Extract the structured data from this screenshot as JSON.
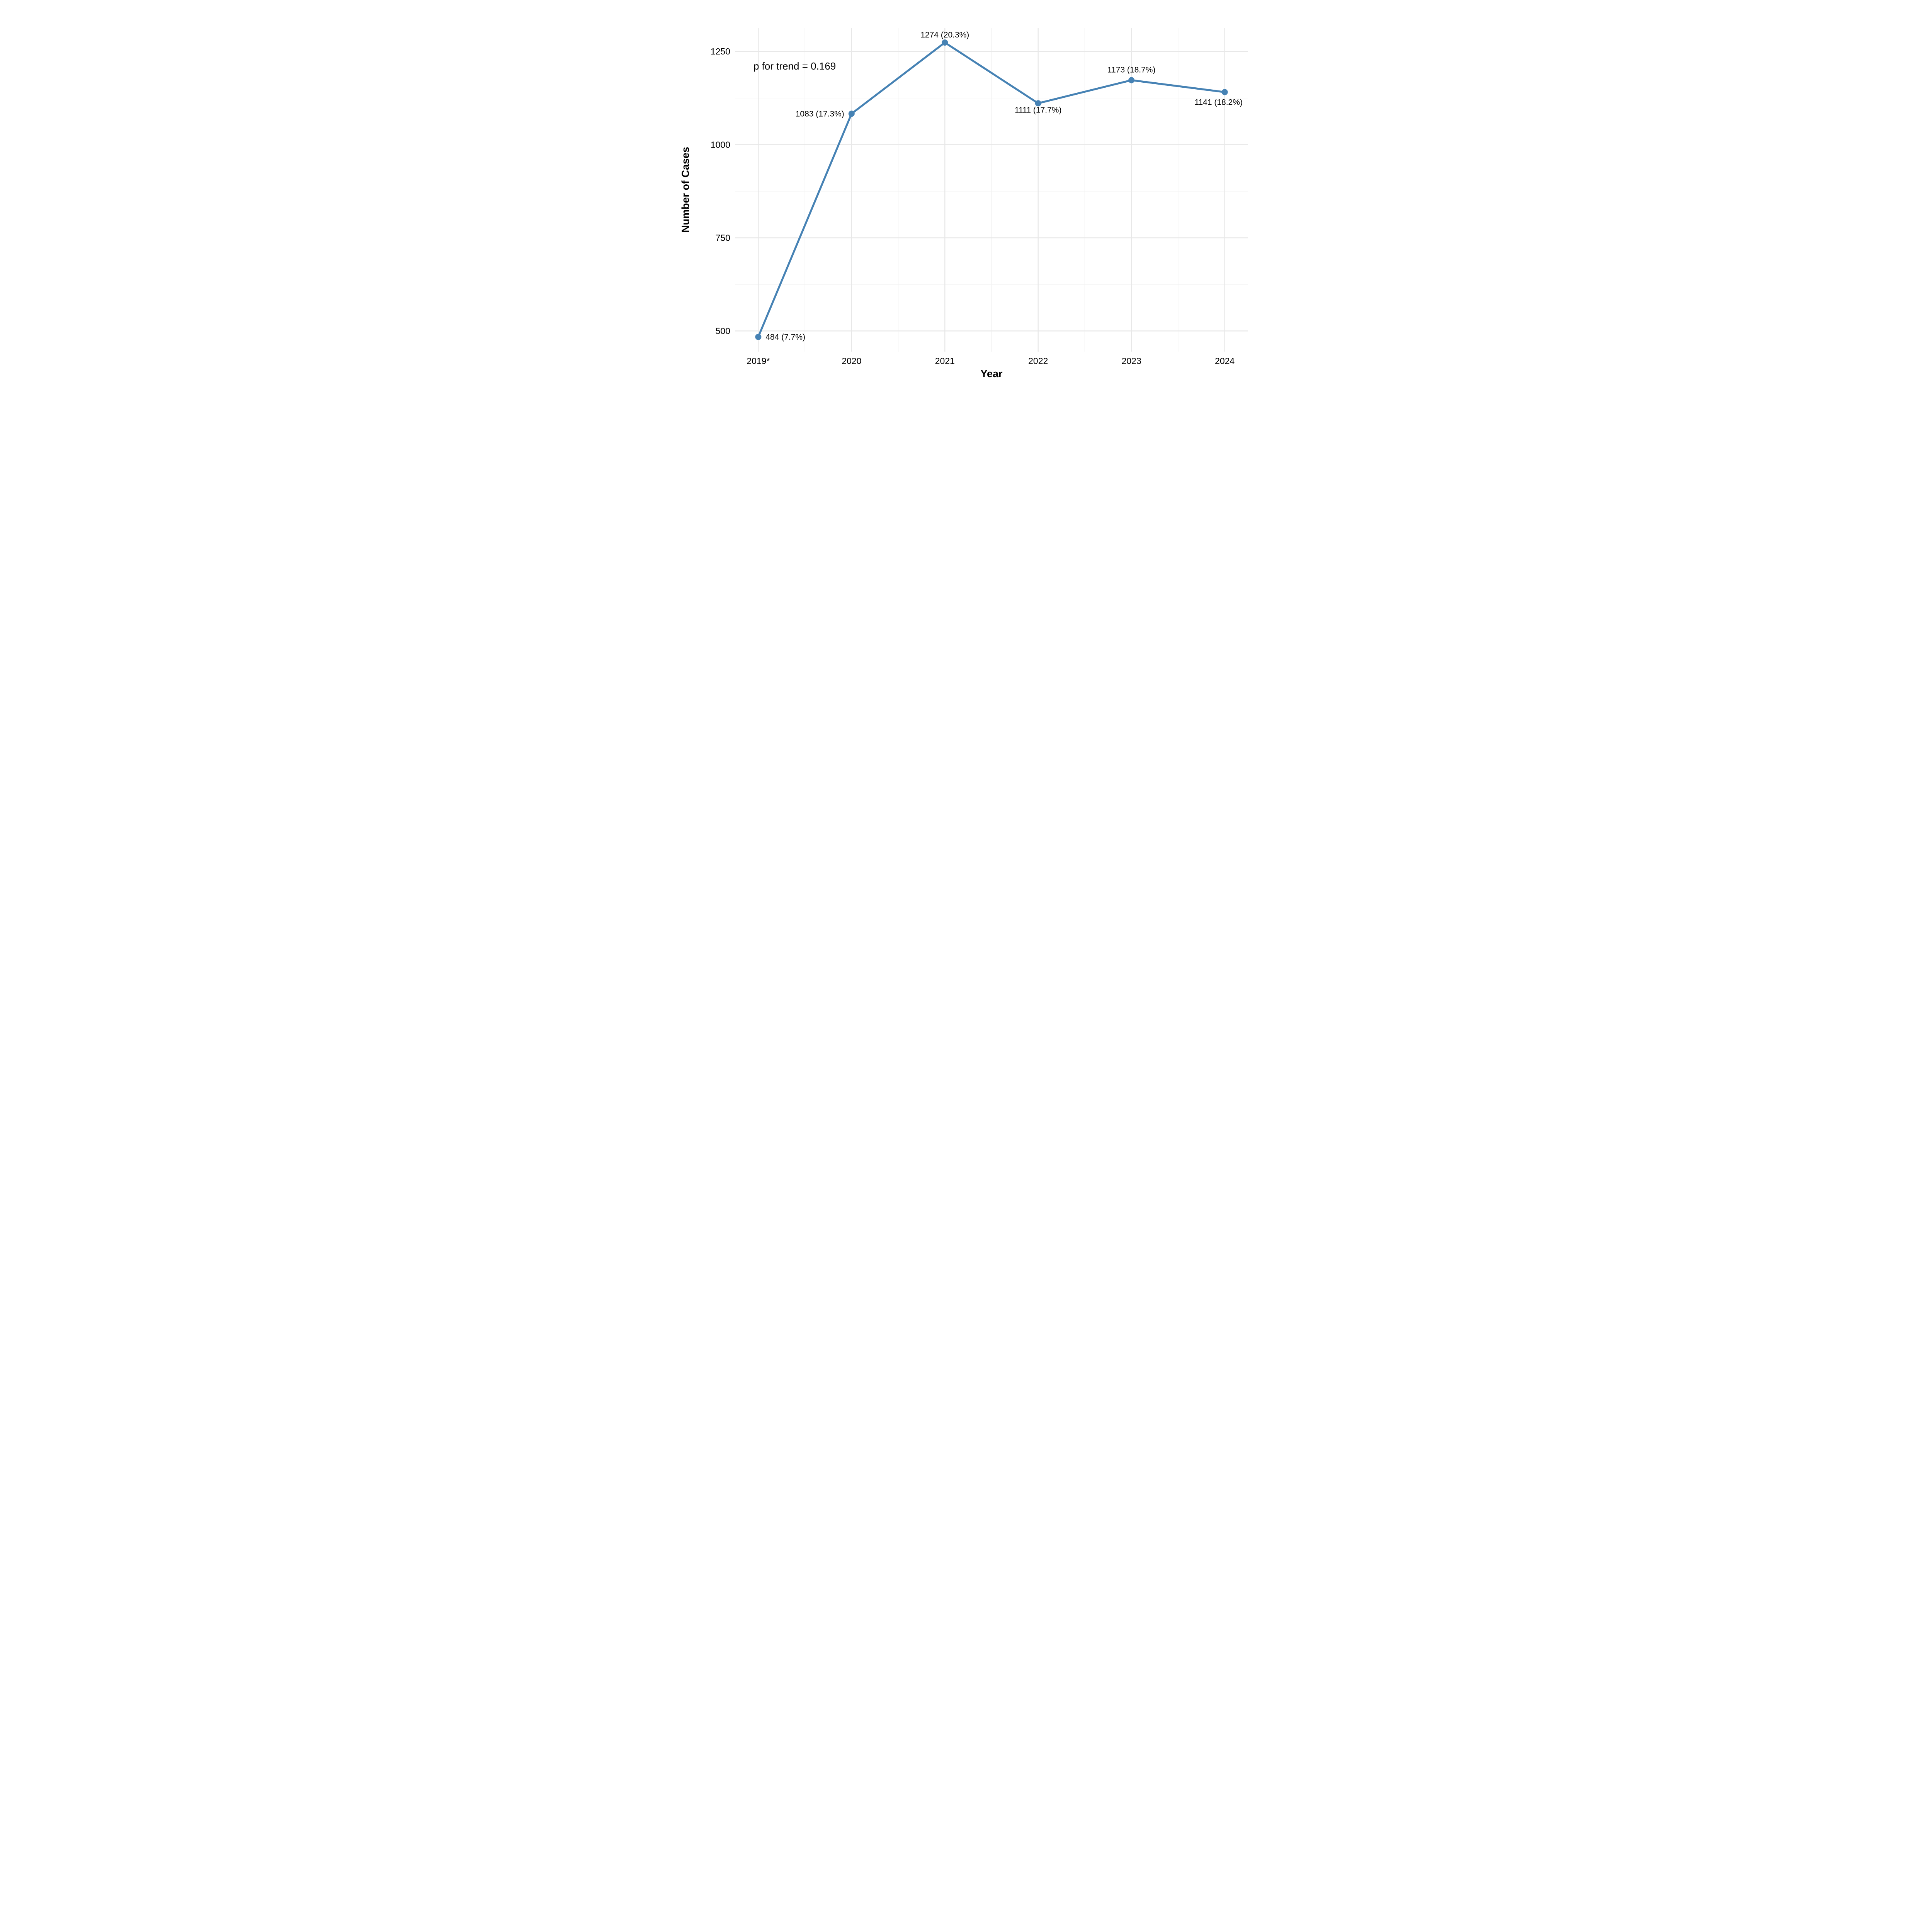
{
  "chart_data": {
    "type": "line",
    "title": "",
    "xlabel": "Year",
    "ylabel": "Number of Cases",
    "annotation": "p for trend = 0.169",
    "categories": [
      "2019*",
      "2020",
      "2021",
      "2022",
      "2023",
      "2024"
    ],
    "values": [
      484,
      1083,
      1274,
      1111,
      1173,
      1141
    ],
    "percentages": [
      7.7,
      17.3,
      20.3,
      17.7,
      18.7,
      18.2
    ],
    "point_labels": [
      "484 (7.7%)",
      "1083 (17.3%)",
      "1274 (20.3%)",
      "1111 (17.7%)",
      "1173 (18.7%)",
      "1141 (18.2%)"
    ],
    "y_ticks": [
      500,
      750,
      1000,
      1250
    ],
    "y_tick_labels": [
      "500",
      "750",
      "1000",
      "1250"
    ],
    "y_minor_ticks": [
      625,
      875,
      1125
    ],
    "ylim": [
      444.5,
      1313.5
    ],
    "grid": true,
    "legend_position": "none",
    "colors": {
      "line": "#4682B4",
      "point": "#4682B4",
      "grid_major": "#E8E8E8",
      "grid_minor": "#F2F2F2",
      "text": "#000000",
      "background": "#FFFFFF"
    }
  }
}
